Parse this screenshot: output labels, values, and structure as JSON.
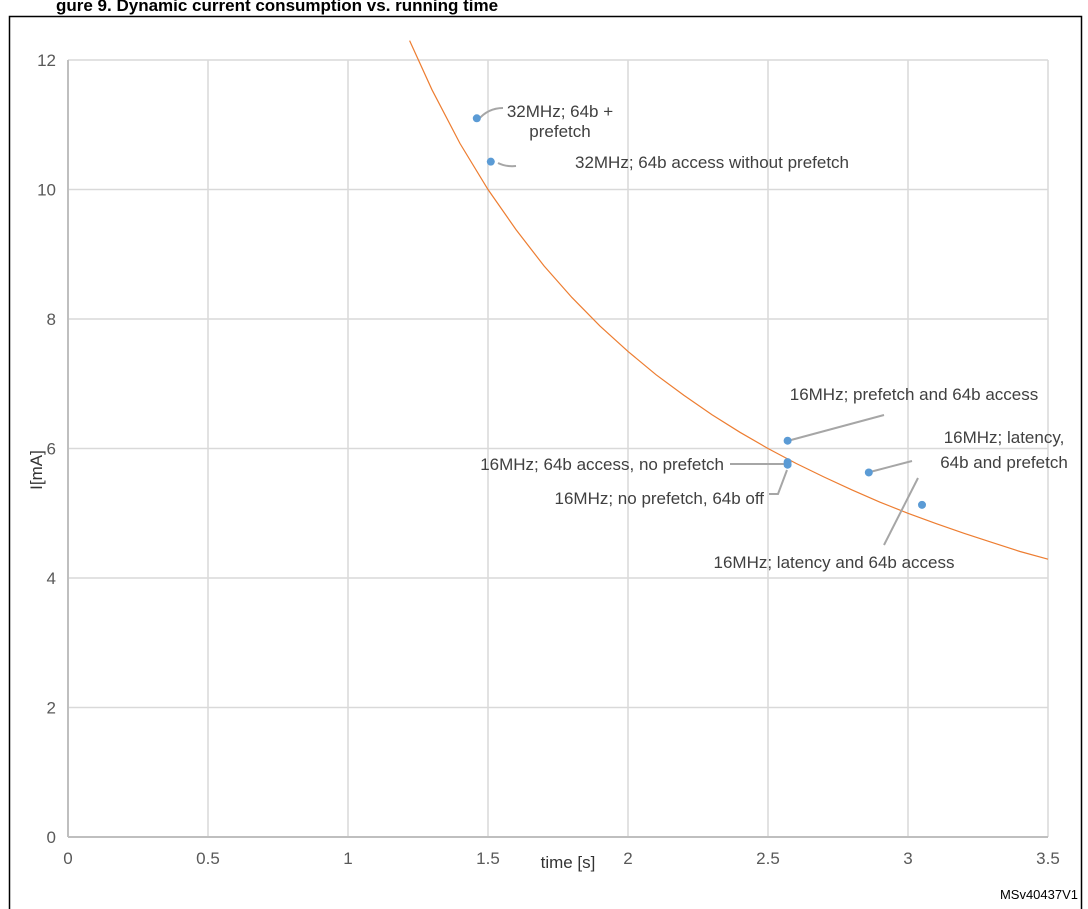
{
  "header": {
    "clipped_caption": "gure 9. Dynamic current consumption vs. running time"
  },
  "figure_id": "MSv40437V1",
  "colors": {
    "grid": "#d9d9d9",
    "axis_line": "#bfbfbf",
    "points": "#5b9bd5",
    "trend_line": "#ed7d31",
    "leader_lines": "#a6a6a6",
    "frame": "#000000"
  },
  "chart_data": {
    "type": "scatter",
    "xlabel": "time [s]",
    "ylabel": "I[mA]",
    "xlim": [
      0,
      3.5
    ],
    "ylim": [
      0,
      12
    ],
    "x_ticks": [
      "0",
      "0.5",
      "1",
      "1.5",
      "2",
      "2.5",
      "3",
      "3.5"
    ],
    "y_ticks": [
      "0",
      "2",
      "4",
      "6",
      "8",
      "10",
      "12"
    ],
    "grid": true,
    "legend": "none",
    "trend_line": {
      "type": "power",
      "formula": "y = 15 / x",
      "x": [
        1.22,
        1.3,
        1.4,
        1.5,
        1.6,
        1.7,
        1.8,
        1.9,
        2.0,
        2.1,
        2.2,
        2.3,
        2.4,
        2.5,
        2.6,
        2.7,
        2.8,
        2.9,
        3.0,
        3.1,
        3.2,
        3.3,
        3.4,
        3.5
      ],
      "y": [
        12.3,
        11.54,
        10.71,
        10.0,
        9.38,
        8.82,
        8.33,
        7.89,
        7.5,
        7.14,
        6.82,
        6.52,
        6.25,
        6.0,
        5.77,
        5.56,
        5.36,
        5.17,
        5.0,
        4.84,
        4.69,
        4.55,
        4.41,
        4.29
      ]
    },
    "points": [
      {
        "x": 1.46,
        "y": 11.1,
        "label": [
          "32MHz; 64b +",
          "prefetch"
        ]
      },
      {
        "x": 1.51,
        "y": 10.43,
        "label": [
          "32MHz; 64b access without prefetch"
        ]
      },
      {
        "x": 2.57,
        "y": 6.12,
        "label": [
          "16MHz; prefetch and 64b access"
        ]
      },
      {
        "x": 2.57,
        "y": 5.79,
        "label": [
          "16MHz; 64b access, no prefetch"
        ]
      },
      {
        "x": 2.57,
        "y": 5.75,
        "label": [
          "16MHz; no prefetch, 64b off"
        ]
      },
      {
        "x": 2.86,
        "y": 5.63,
        "label": [
          "16MHz; latency,",
          "64b and prefetch"
        ]
      },
      {
        "x": 3.05,
        "y": 5.13,
        "label": [
          "16MHz; latency and 64b access"
        ]
      }
    ]
  }
}
